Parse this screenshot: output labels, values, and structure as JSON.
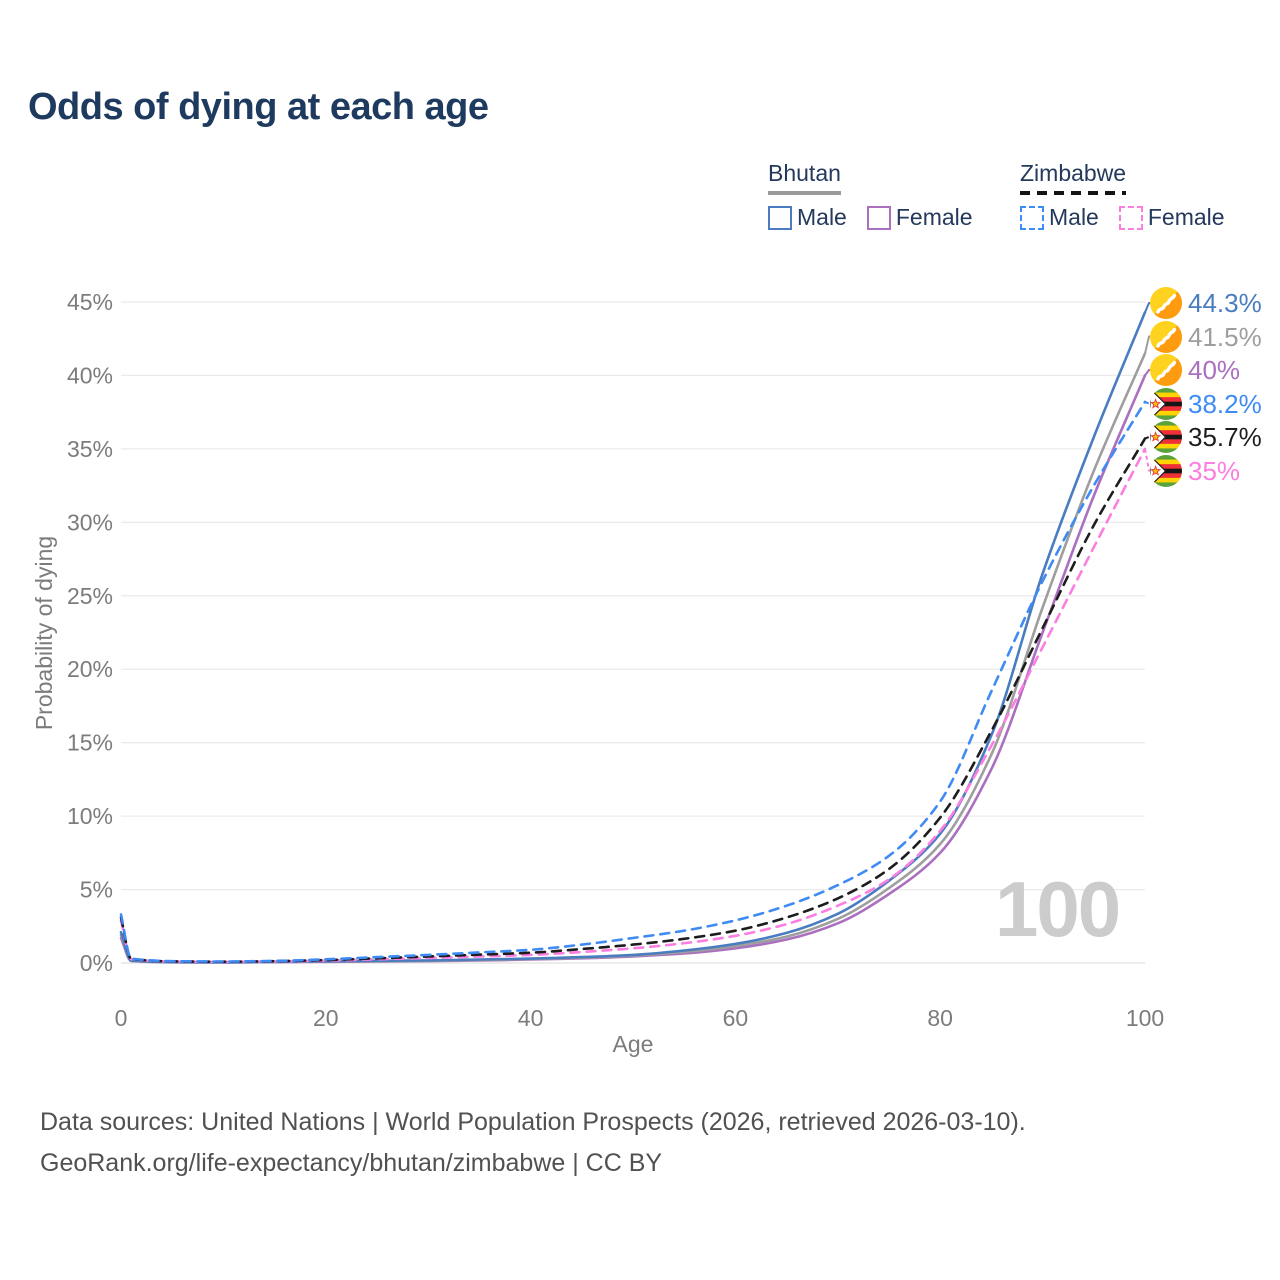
{
  "title": "Odds of dying at each age",
  "legend": {
    "groups": [
      {
        "label": "Bhutan",
        "line_style": "solid",
        "underline_color": "#9a9a9a",
        "items": [
          {
            "label": "Male"
          },
          {
            "label": "Female"
          }
        ]
      },
      {
        "label": "Zimbabwe",
        "line_style": "dashed",
        "underline_color": "#141414",
        "items": [
          {
            "label": "Male"
          },
          {
            "label": "Female"
          }
        ]
      }
    ]
  },
  "chart_data": {
    "type": "line",
    "title": "Odds of dying at each age",
    "xlabel": "Age",
    "ylabel": "Probability of dying",
    "xlim": [
      0,
      100
    ],
    "ylim": [
      0,
      45
    ],
    "x_ticks": [
      0,
      20,
      40,
      60,
      80,
      100
    ],
    "y_ticks": [
      0,
      5,
      10,
      15,
      20,
      25,
      30,
      35,
      40,
      45
    ],
    "y_tick_suffix": "%",
    "grid": "horizontal",
    "legend_position": "top-right",
    "x": [
      0,
      1,
      5,
      10,
      15,
      20,
      25,
      30,
      35,
      40,
      45,
      50,
      55,
      60,
      65,
      70,
      75,
      80,
      85,
      90,
      95,
      100
    ],
    "series": [
      {
        "name": "Bhutan Male",
        "country": "Bhutan",
        "flag": "bhutan",
        "color": "#4a7cc0",
        "dash": false,
        "end_label": "44.3%",
        "values": [
          2.1,
          0.16,
          0.06,
          0.05,
          0.08,
          0.12,
          0.15,
          0.18,
          0.24,
          0.3,
          0.4,
          0.55,
          0.85,
          1.3,
          2.05,
          3.35,
          5.6,
          8.8,
          15.5,
          26.5,
          35.8,
          44.3
        ]
      },
      {
        "name": "Bhutan (both sexes)",
        "country": "Bhutan",
        "flag": "bhutan",
        "color": "#9e9e9e",
        "dash": false,
        "end_label": "41.5%",
        "values": [
          1.9,
          0.15,
          0.055,
          0.045,
          0.07,
          0.1,
          0.12,
          0.15,
          0.2,
          0.27,
          0.36,
          0.5,
          0.75,
          1.15,
          1.8,
          3.0,
          5.1,
          8.1,
          14.2,
          24.2,
          33.5,
          41.5
        ]
      },
      {
        "name": "Bhutan Female",
        "country": "Bhutan",
        "flag": "bhutan",
        "color": "#ab6fc0",
        "dash": false,
        "end_label": "40%",
        "values": [
          1.7,
          0.14,
          0.05,
          0.04,
          0.06,
          0.08,
          0.1,
          0.13,
          0.17,
          0.24,
          0.32,
          0.45,
          0.65,
          1.0,
          1.6,
          2.7,
          4.7,
          7.5,
          13.2,
          22.5,
          31.8,
          40
        ]
      },
      {
        "name": "Zimbabwe Male",
        "country": "Zimbabwe",
        "flag": "zimbabwe",
        "color": "#3f8bf4",
        "dash": true,
        "end_label": "38.2%",
        "values": [
          3.3,
          0.3,
          0.12,
          0.1,
          0.14,
          0.25,
          0.4,
          0.55,
          0.72,
          0.9,
          1.25,
          1.7,
          2.2,
          2.9,
          3.9,
          5.3,
          7.3,
          11.0,
          18.5,
          26.0,
          32.5,
          38.2
        ]
      },
      {
        "name": "Zimbabwe (both sexes)",
        "country": "Zimbabwe",
        "flag": "zimbabwe",
        "color": "#1d1d1d",
        "dash": true,
        "end_label": "35.7%",
        "values": [
          3.1,
          0.28,
          0.11,
          0.09,
          0.12,
          0.2,
          0.32,
          0.44,
          0.57,
          0.7,
          0.95,
          1.25,
          1.65,
          2.2,
          3.1,
          4.4,
          6.4,
          9.9,
          15.8,
          22.8,
          29.8,
          35.7
        ]
      },
      {
        "name": "Zimbabwe Female",
        "country": "Zimbabwe",
        "flag": "zimbabwe",
        "color": "#fb7ee0",
        "dash": true,
        "end_label": "35%",
        "values": [
          2.9,
          0.26,
          0.1,
          0.08,
          0.11,
          0.16,
          0.25,
          0.34,
          0.44,
          0.55,
          0.75,
          1.0,
          1.35,
          1.85,
          2.65,
          3.9,
          5.7,
          9.0,
          14.8,
          21.5,
          28.3,
          35
        ]
      }
    ]
  },
  "watermark": "100",
  "footer": {
    "line1": "Data sources: United Nations | World Population Prospects (2026, retrieved 2026-03-10).",
    "line2": "GeoRank.org/life-expectancy/bhutan/zimbabwe | CC BY"
  }
}
